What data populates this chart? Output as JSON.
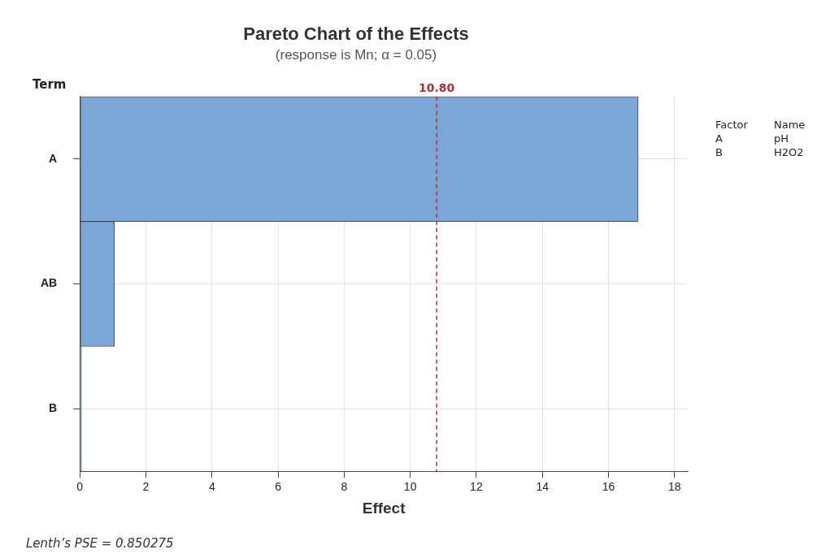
{
  "chart_data": {
    "type": "bar",
    "orientation": "horizontal",
    "title": "Pareto Chart of the Effects",
    "subtitle": "(response is Mn; α = 0.05)",
    "xlabel": "Effect",
    "ylabel": "Term",
    "categories": [
      "A",
      "AB",
      "B"
    ],
    "values": [
      16.9,
      1.05,
      0.05
    ],
    "color": "#7ba7d8",
    "xlim": [
      0,
      18.4
    ],
    "xticks": [
      0,
      2,
      4,
      6,
      8,
      10,
      12,
      14,
      16,
      18
    ],
    "ref_lines": [
      {
        "axis": "x",
        "value": 10.8,
        "label": "10.80",
        "color": "#c0272d",
        "line_style": "dashed"
      }
    ],
    "annotations": [
      "Factor",
      "Name",
      "A",
      "pH",
      "B",
      "H2O2",
      "Lenth’s PSE = 0.850275"
    ],
    "grid": true,
    "legend": false
  }
}
